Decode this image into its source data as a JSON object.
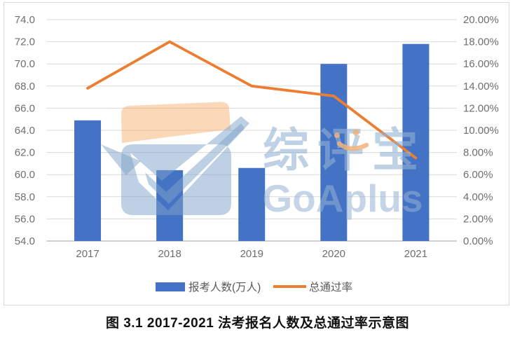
{
  "caption": "图 3.1 2017-2021 法考报名人数及总通过率示意图",
  "watermark": {
    "cjk": "综评宝",
    "latin": "GoAplus",
    "blue_color": "#BDD3E8",
    "peach_color": "#F8CBAD"
  },
  "chart_data": {
    "type": "combo (bar + line)",
    "categories": [
      "2017",
      "2018",
      "2019",
      "2020",
      "2021"
    ],
    "series": [
      {
        "name": "报考人数(万人)",
        "type": "bar",
        "axis": "left",
        "color": "#4472C4",
        "values": [
          64.9,
          60.4,
          60.6,
          70.0,
          71.8
        ]
      },
      {
        "name": "总通过率",
        "type": "line",
        "axis": "right",
        "unit": "%",
        "color": "#ED7D31",
        "values": [
          13.8,
          18.0,
          14.0,
          13.1,
          7.5
        ]
      }
    ],
    "left_axis": {
      "min": 54.0,
      "max": 74.0,
      "step": 2.0,
      "ticks": [
        "74.0",
        "72.0",
        "70.0",
        "68.0",
        "66.0",
        "64.0",
        "62.0",
        "60.0",
        "58.0",
        "56.0",
        "54.0"
      ]
    },
    "right_axis": {
      "min": 0,
      "max": 20,
      "step": 2,
      "ticks": [
        "20.00%",
        "18.00%",
        "16.00%",
        "14.00%",
        "12.00%",
        "10.00%",
        "8.00%",
        "6.00%",
        "4.00%",
        "2.00%",
        "0.00%"
      ]
    },
    "grid": true,
    "grid_color": "#D9D9D9",
    "axis_text_color": "#6E6E6E",
    "legend_position": "bottom"
  }
}
